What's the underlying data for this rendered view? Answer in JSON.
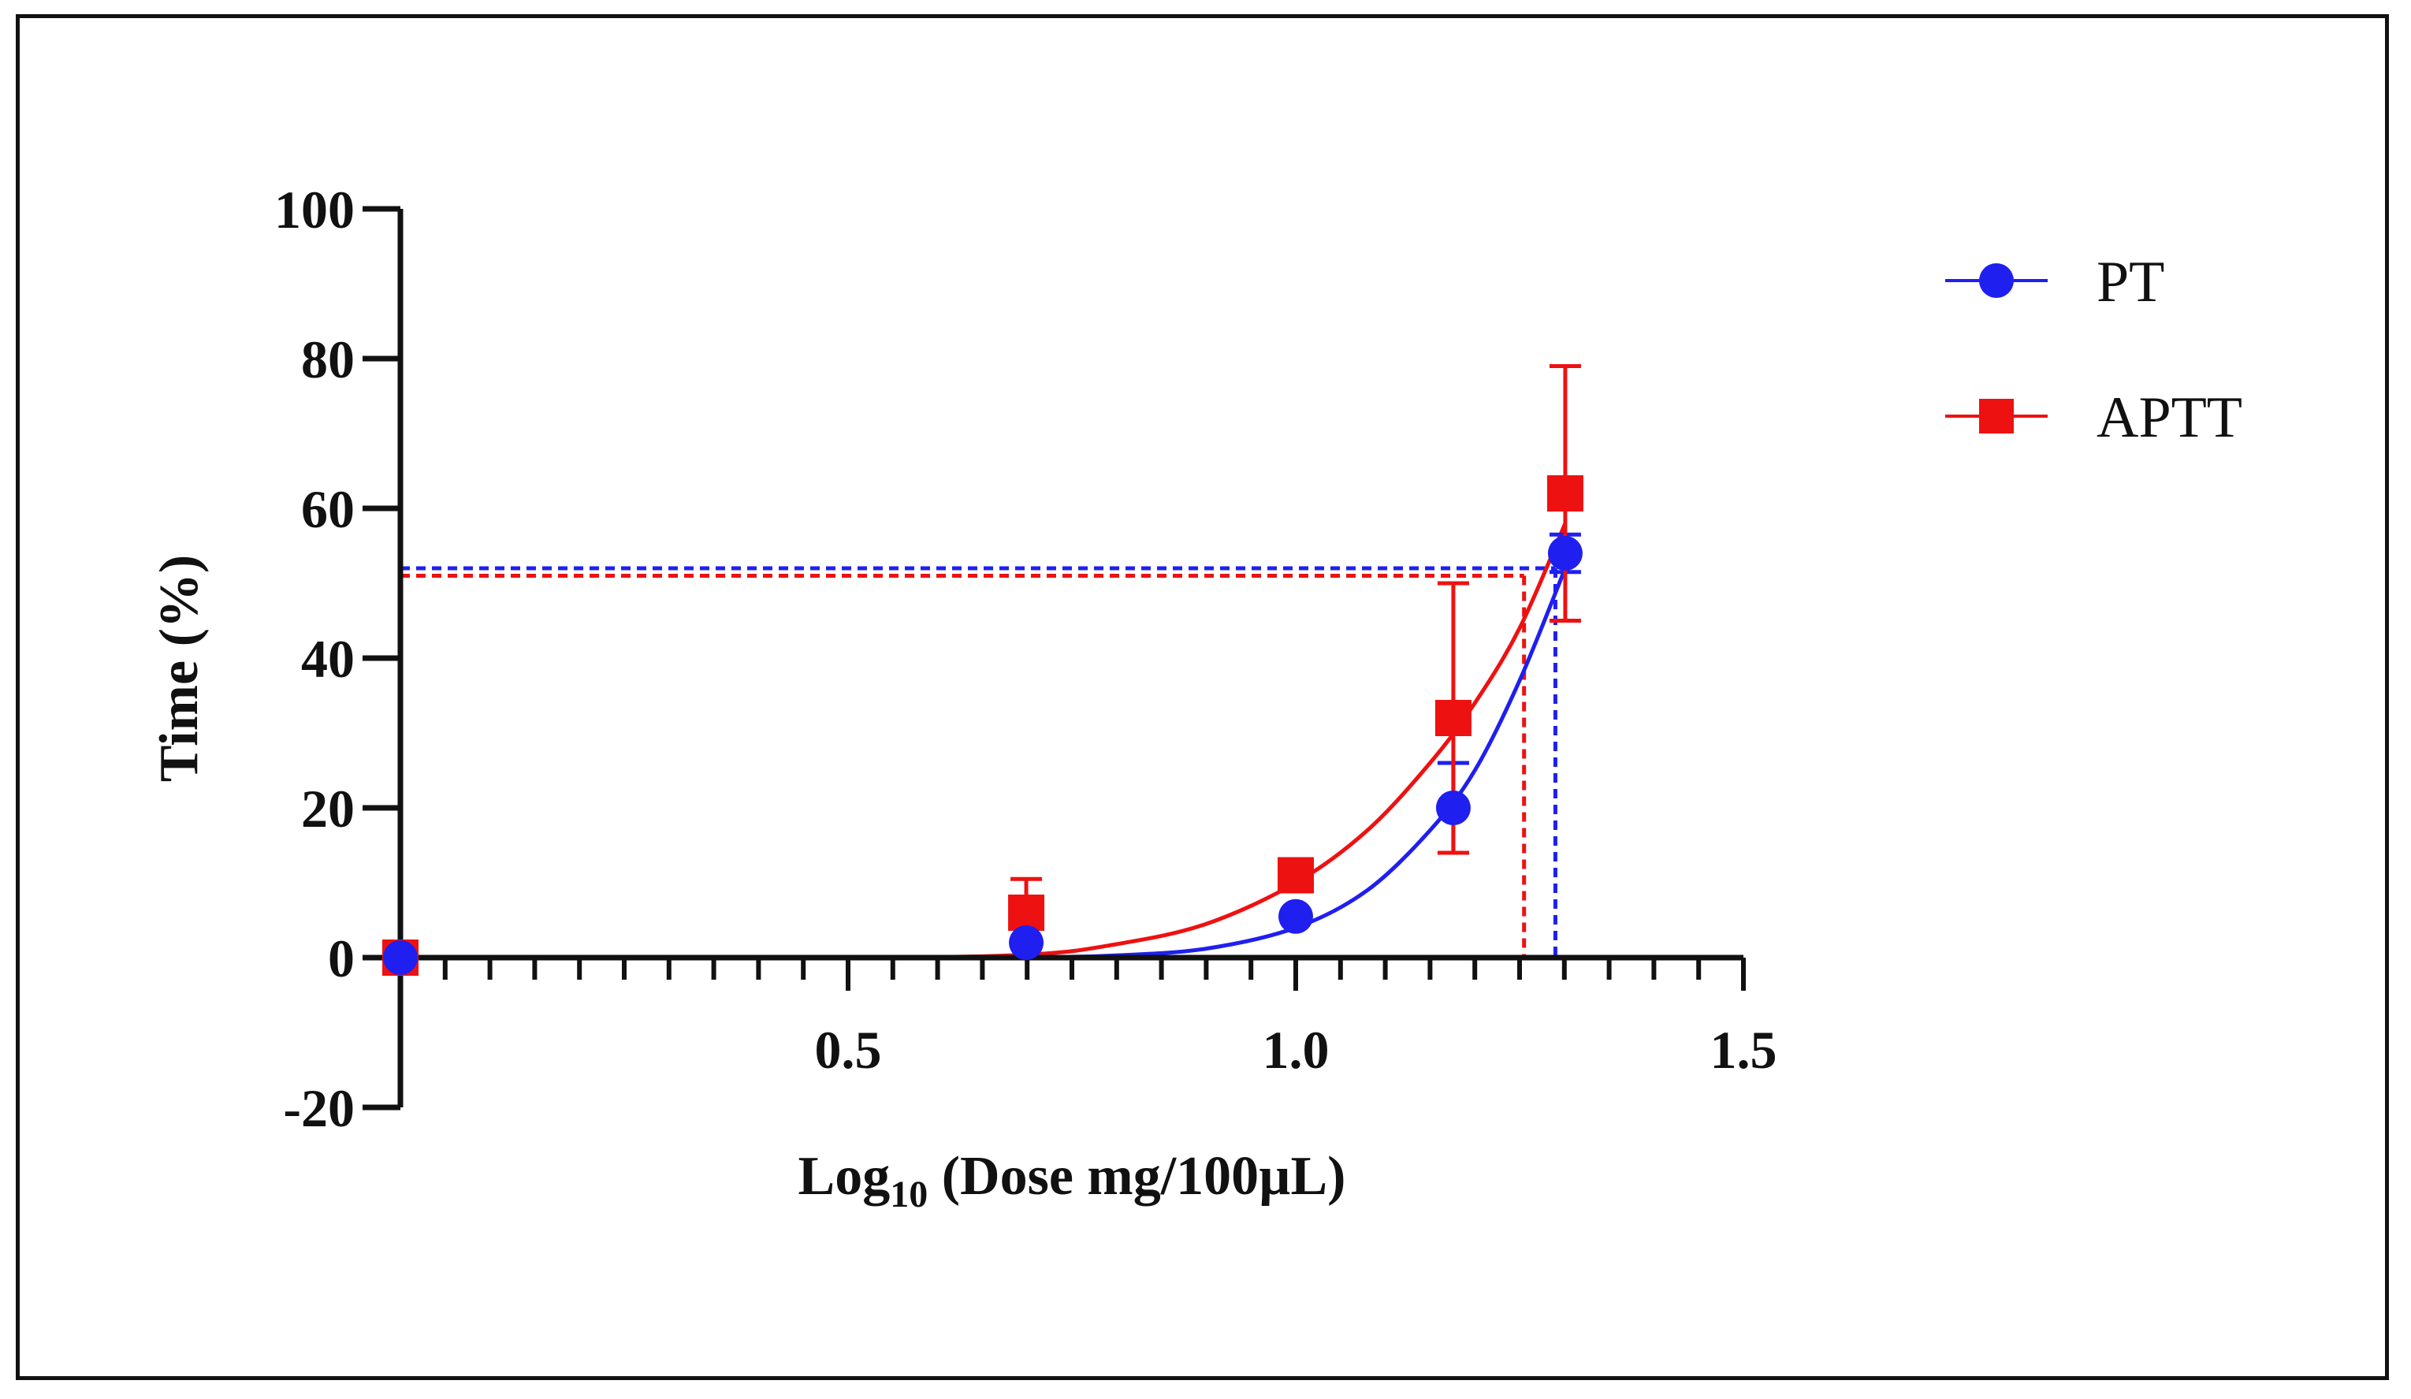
{
  "chart_data": {
    "type": "scatter",
    "title": "",
    "xlabel_main": "Log",
    "xlabel_sub": "10",
    "xlabel_rest": " (Dose mg/100µL)",
    "ylabel": "Time (%)",
    "xlim": [
      0,
      1.5
    ],
    "ylim": [
      -20,
      100
    ],
    "x_ticks": [
      0.5,
      1.0,
      1.5
    ],
    "x_tick_labels": [
      "0.5",
      "1.0",
      "1.5"
    ],
    "x_minor_step": 0.05,
    "y_ticks": [
      -20,
      0,
      20,
      40,
      60,
      80,
      100
    ],
    "y_tick_labels": [
      "-20",
      "0",
      "20",
      "40",
      "60",
      "80",
      "100"
    ],
    "legend_position": "top-right",
    "series": [
      {
        "name": "PT",
        "color": "#1f1ff0",
        "marker": "circle",
        "x": [
          0,
          0.699,
          1.0,
          1.176,
          1.301
        ],
        "y": [
          0,
          2,
          5.5,
          20,
          54
        ],
        "err": [
          0,
          0,
          0,
          6,
          2.5
        ],
        "curve": [
          [
            0,
            0
          ],
          [
            0.5,
            0
          ],
          [
            0.7,
            0.05
          ],
          [
            0.8,
            0.3
          ],
          [
            0.9,
            1.2
          ],
          [
            1.0,
            4
          ],
          [
            1.08,
            9
          ],
          [
            1.15,
            17
          ],
          [
            1.2,
            25
          ],
          [
            1.25,
            37
          ],
          [
            1.301,
            52
          ]
        ],
        "ic50": 1.29,
        "ic50_y": 52
      },
      {
        "name": "APTT",
        "color": "#ee1111",
        "marker": "square",
        "x": [
          0,
          0.699,
          1.0,
          1.176,
          1.301
        ],
        "y": [
          0,
          6,
          11,
          32,
          62
        ],
        "err": [
          0,
          4.5,
          0,
          18,
          17
        ],
        "curve": [
          [
            0,
            0
          ],
          [
            0.5,
            0
          ],
          [
            0.7,
            0.4
          ],
          [
            0.8,
            1.8
          ],
          [
            0.9,
            4.5
          ],
          [
            1.0,
            10
          ],
          [
            1.08,
            17
          ],
          [
            1.15,
            26
          ],
          [
            1.2,
            34
          ],
          [
            1.25,
            44
          ],
          [
            1.301,
            58
          ]
        ],
        "ic50": 1.255,
        "ic50_y": 51
      }
    ]
  }
}
